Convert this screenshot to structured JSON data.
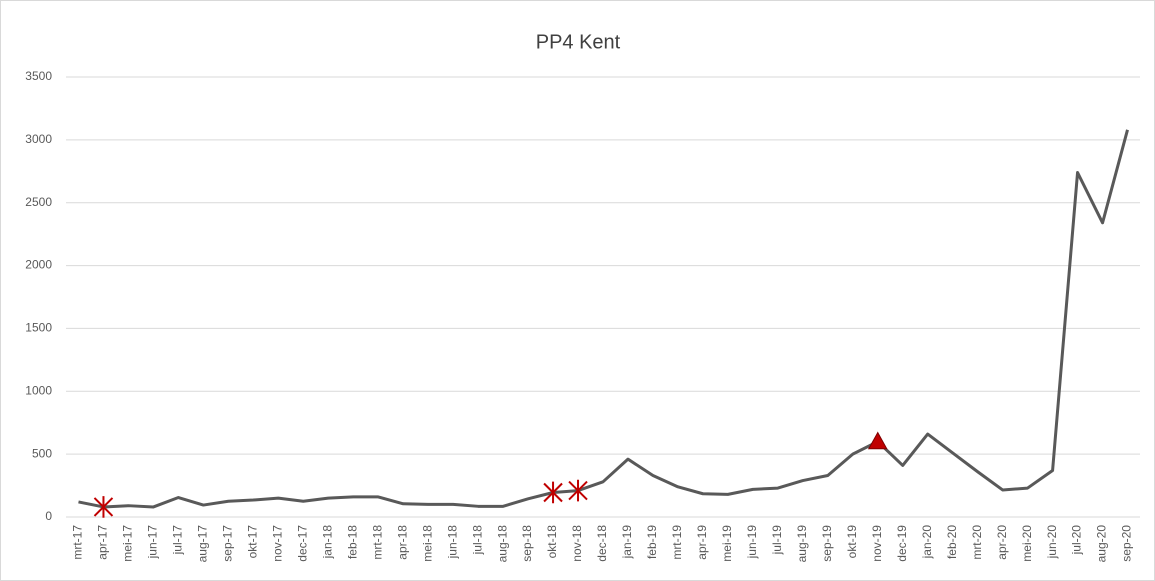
{
  "chart_data": {
    "type": "line",
    "title": "PP4 Kent",
    "categories": [
      "mrt-17",
      "apr-17",
      "mei-17",
      "jun-17",
      "jul-17",
      "aug-17",
      "sep-17",
      "okt-17",
      "nov-17",
      "dec-17",
      "jan-18",
      "feb-18",
      "mrt-18",
      "apr-18",
      "mei-18",
      "jun-18",
      "jul-18",
      "aug-18",
      "sep-18",
      "okt-18",
      "nov-18",
      "dec-18",
      "jan-19",
      "feb-19",
      "mrt-19",
      "apr-19",
      "mei-19",
      "jun-19",
      "jul-19",
      "aug-19",
      "sep-19",
      "okt-19",
      "nov-19",
      "dec-19",
      "jan-20",
      "feb-20",
      "mrt-20",
      "apr-20",
      "mei-20",
      "jun-20",
      "jul-20",
      "aug-20",
      "sep-20"
    ],
    "values": [
      120,
      80,
      90,
      80,
      155,
      95,
      125,
      135,
      150,
      125,
      150,
      160,
      160,
      105,
      100,
      100,
      85,
      85,
      145,
      195,
      210,
      280,
      460,
      330,
      240,
      185,
      180,
      220,
      230,
      290,
      330,
      500,
      600,
      410,
      660,
      510,
      360,
      215,
      230,
      370,
      2740,
      2340,
      3080
    ],
    "color": "#595959",
    "markers": [
      {
        "category": "apr-17",
        "shape": "asterisk",
        "color": "#c00000"
      },
      {
        "category": "okt-18",
        "shape": "asterisk",
        "color": "#c00000"
      },
      {
        "category": "nov-18",
        "shape": "asterisk",
        "color": "#c00000"
      },
      {
        "category": "nov-19",
        "shape": "triangle",
        "color": "#c00000"
      }
    ],
    "ylim": [
      0,
      3500
    ],
    "yticks": [
      0,
      500,
      1000,
      1500,
      2000,
      2500,
      3000,
      3500
    ],
    "grid": true
  }
}
